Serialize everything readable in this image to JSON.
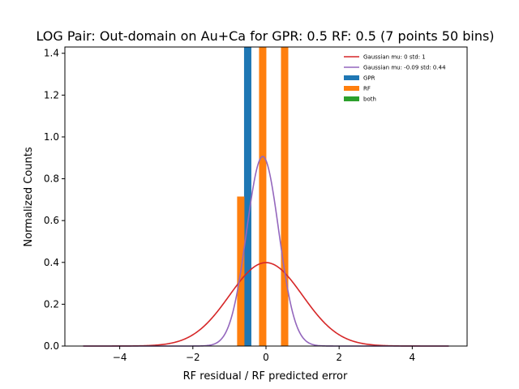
{
  "chart_data": {
    "type": "bar",
    "title": "LOG Pair: Out-domain on Au+Ca for GPR: 0.5 RF: 0.5 (7 points 50 bins)",
    "xlabel": "RF residual / RF predicted error",
    "ylabel": "Normalized Counts",
    "xlim": [
      -5.5,
      5.5
    ],
    "ylim": [
      0.0,
      1.43
    ],
    "xticks": [
      -4,
      -2,
      0,
      2,
      4
    ],
    "xtick_labels": [
      "−4",
      "−2",
      "0",
      "2",
      "4"
    ],
    "yticks": [
      0.0,
      0.2,
      0.4,
      0.6,
      0.8,
      1.0,
      1.2,
      1.4
    ],
    "ytick_labels": [
      "0.0",
      "0.2",
      "0.4",
      "0.6",
      "0.8",
      "1.0",
      "1.2",
      "1.4"
    ],
    "grid": false,
    "legend_position": "top-right",
    "bar_width": 0.2,
    "series": [
      {
        "name": "Gaussian mu: 0 std: 1",
        "kind": "line",
        "color": "#d62728",
        "mu": 0,
        "std": 1,
        "x_range": [
          -5,
          5
        ]
      },
      {
        "name": "Gaussian mu: -0.09 std: 0.44",
        "kind": "line",
        "color": "#9467bd",
        "mu": -0.09,
        "std": 0.44,
        "x_range": [
          -5,
          5
        ]
      },
      {
        "name": "GPR",
        "kind": "bar",
        "color": "#1f77b4",
        "bars": [
          {
            "x": -0.5,
            "value": 1.43
          }
        ]
      },
      {
        "name": "RF",
        "kind": "bar",
        "color": "#ff7f0e",
        "bars": [
          {
            "x": -0.69,
            "value": 0.715
          },
          {
            "x": -0.09,
            "value": 1.43
          },
          {
            "x": 0.51,
            "value": 1.43
          }
        ]
      },
      {
        "name": "both",
        "kind": "bar",
        "color": "#2ca02c",
        "bars": []
      }
    ]
  }
}
